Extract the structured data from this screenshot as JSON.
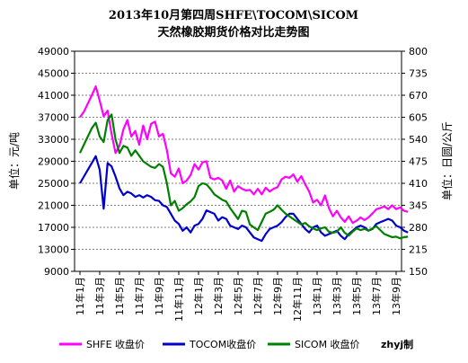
{
  "chart_data": {
    "type": "line",
    "title": "2013年10月第四周SHFE\\TOCOM\\SICOM",
    "subtitle": "天然橡胶期货价格对比走势图",
    "ylabel_left": "单位：元/吨",
    "ylabel_right": "单位：日圆/公斤",
    "ylim_left": [
      9000,
      49000
    ],
    "yticks_left": [
      9000,
      13000,
      17000,
      21000,
      25000,
      29000,
      33000,
      37000,
      41000,
      45000,
      49000
    ],
    "ylim_right": [
      150,
      800
    ],
    "yticks_right": [
      150,
      215,
      280,
      345,
      410,
      475,
      540,
      605,
      670,
      735,
      800
    ],
    "x_labels": [
      "11年1月",
      "11年3月",
      "11年5月",
      "11年7月",
      "11年9月",
      "11年11月",
      "12年1月",
      "12年3月",
      "12年5月",
      "12年7月",
      "12年9月",
      "12年11月",
      "13年1月",
      "13年3月",
      "13年5月",
      "13年7月",
      "13年9月"
    ],
    "grid": true,
    "legend_position": "bottom",
    "watermark": "zhyj制",
    "colors": {
      "SHFE": "#ff00ff",
      "TOCOM": "#0000cc",
      "SICOM": "#008000"
    },
    "series": [
      {
        "name": "SHFE 收盘价",
        "axis": "left",
        "x": [
          0.0,
          0.4,
          0.8,
          1.2,
          1.6,
          2.0,
          2.4,
          2.8,
          3.2,
          3.6,
          4.0,
          4.4,
          4.8,
          5.2,
          5.6,
          6.0,
          6.4,
          6.8,
          7.2,
          7.6,
          8.0,
          8.4,
          8.8,
          9.2,
          9.6,
          10.0,
          10.4,
          10.8,
          11.2,
          11.6,
          12.0,
          12.4,
          12.8,
          13.2,
          13.6,
          14.0,
          14.4,
          14.8,
          15.2,
          15.6,
          16.0,
          16.4,
          16.8,
          17.2,
          17.6,
          18.0,
          18.4,
          18.8,
          19.2,
          19.6,
          20.0,
          20.4,
          20.8,
          21.2,
          21.6,
          22.0,
          22.4,
          22.8,
          23.2,
          23.6,
          24.0,
          24.4,
          24.8,
          25.2,
          25.6,
          26.0,
          26.4,
          26.8,
          27.2,
          27.6,
          28.0,
          28.4,
          28.8,
          29.2,
          29.6,
          30.0,
          30.4,
          30.8,
          31.2,
          31.6,
          32.0,
          32.4,
          32.8,
          33.2
        ],
        "values": [
          37000,
          38000,
          39500,
          41000,
          42600,
          40000,
          37200,
          38200,
          34000,
          30500,
          31800,
          34800,
          36500,
          33500,
          34500,
          32000,
          35500,
          33000,
          35800,
          36200,
          33500,
          34000,
          31000,
          26800,
          26200,
          27700,
          25000,
          25500,
          26500,
          28500,
          27500,
          28800,
          29000,
          26000,
          25700,
          26000,
          25500,
          24000,
          25500,
          23500,
          24500,
          24000,
          23700,
          23800,
          23000,
          24000,
          23000,
          24200,
          23500,
          24000,
          24300,
          25700,
          26200,
          26000,
          26600,
          25300,
          26300,
          24800,
          23500,
          21500,
          22000,
          21000,
          22800,
          20500,
          19000,
          20000,
          18800,
          18000,
          19000,
          17800,
          18200,
          18800,
          18300,
          18800,
          19500,
          20300,
          20500,
          20800,
          20300,
          21000,
          20300,
          20600,
          20000,
          19800
        ]
      },
      {
        "name": "TOCOM收盘价",
        "axis": "right",
        "x": [
          0.0,
          0.4,
          0.8,
          1.2,
          1.6,
          2.0,
          2.4,
          2.8,
          3.2,
          3.6,
          4.0,
          4.4,
          4.8,
          5.2,
          5.6,
          6.0,
          6.4,
          6.8,
          7.2,
          7.6,
          8.0,
          8.4,
          8.8,
          9.2,
          9.6,
          10.0,
          10.4,
          10.8,
          11.2,
          11.6,
          12.0,
          12.4,
          12.8,
          13.2,
          13.6,
          14.0,
          14.4,
          14.8,
          15.2,
          15.6,
          16.0,
          16.4,
          16.8,
          17.2,
          17.6,
          18.0,
          18.4,
          18.8,
          19.2,
          19.6,
          20.0,
          20.4,
          20.8,
          21.2,
          21.6,
          22.0,
          22.4,
          22.8,
          23.2,
          23.6,
          24.0,
          24.4,
          24.8,
          25.2,
          25.6,
          26.0,
          26.4,
          26.8,
          27.2,
          27.6,
          28.0,
          28.4,
          28.8,
          29.2,
          29.6,
          30.0,
          30.4,
          30.8,
          31.2,
          31.6,
          32.0,
          32.4,
          32.8,
          33.2
        ],
        "values": [
          410,
          430,
          450,
          470,
          490,
          450,
          335,
          470,
          460,
          430,
          395,
          375,
          385,
          380,
          370,
          375,
          368,
          375,
          370,
          360,
          358,
          345,
          340,
          320,
          300,
          290,
          270,
          280,
          265,
          285,
          290,
          305,
          330,
          325,
          320,
          300,
          310,
          305,
          285,
          280,
          275,
          285,
          280,
          265,
          250,
          245,
          240,
          260,
          275,
          280,
          285,
          295,
          310,
          320,
          320,
          305,
          290,
          275,
          265,
          280,
          285,
          265,
          255,
          260,
          265,
          270,
          255,
          245,
          260,
          270,
          280,
          285,
          280,
          270,
          275,
          290,
          295,
          300,
          305,
          300,
          285,
          280,
          270,
          265
        ]
      },
      {
        "name": "SICOM 收盘价",
        "axis": "left",
        "x": [
          0.0,
          0.4,
          0.8,
          1.2,
          1.6,
          2.0,
          2.4,
          2.8,
          3.2,
          3.6,
          4.0,
          4.4,
          4.8,
          5.2,
          5.6,
          6.0,
          6.4,
          6.8,
          7.2,
          7.6,
          8.0,
          8.4,
          8.8,
          9.2,
          9.6,
          10.0,
          10.4,
          10.8,
          11.2,
          11.6,
          12.0,
          12.4,
          12.8,
          13.2,
          13.6,
          14.0,
          14.4,
          14.8,
          15.2,
          15.6,
          16.0,
          16.4,
          16.8,
          17.2,
          17.6,
          18.0,
          18.4,
          18.8,
          19.2,
          19.6,
          20.0,
          20.4,
          20.8,
          21.2,
          21.6,
          22.0,
          22.4,
          22.8,
          23.2,
          23.6,
          24.0,
          24.4,
          24.8,
          25.2,
          25.6,
          26.0,
          26.4,
          26.8,
          27.2,
          27.6,
          28.0,
          28.4,
          28.8,
          29.2,
          29.6,
          30.0,
          30.4,
          30.8,
          31.2,
          31.6,
          32.0,
          32.4,
          32.8,
          33.2
        ],
        "values": [
          30500,
          32000,
          33500,
          35000,
          36000,
          33500,
          32500,
          36500,
          37500,
          33000,
          30500,
          31800,
          31500,
          30000,
          31000,
          30000,
          29000,
          28500,
          28000,
          27800,
          28500,
          28000,
          25000,
          21000,
          21800,
          20000,
          20500,
          21200,
          21700,
          22500,
          24500,
          25000,
          24800,
          24000,
          23000,
          22500,
          22000,
          21700,
          20500,
          19500,
          18500,
          20000,
          19800,
          17500,
          17000,
          16500,
          18000,
          19500,
          19800,
          20200,
          21000,
          20200,
          19500,
          19000,
          18500,
          18000,
          17500,
          17800,
          17200,
          16800,
          16500,
          16800,
          17000,
          16200,
          16000,
          16200,
          17000,
          16000,
          15500,
          16200,
          16800,
          16500,
          16700,
          16400,
          16800,
          17200,
          16500,
          15800,
          15500,
          15200,
          15300,
          15000,
          15200,
          15300
        ]
      }
    ]
  }
}
